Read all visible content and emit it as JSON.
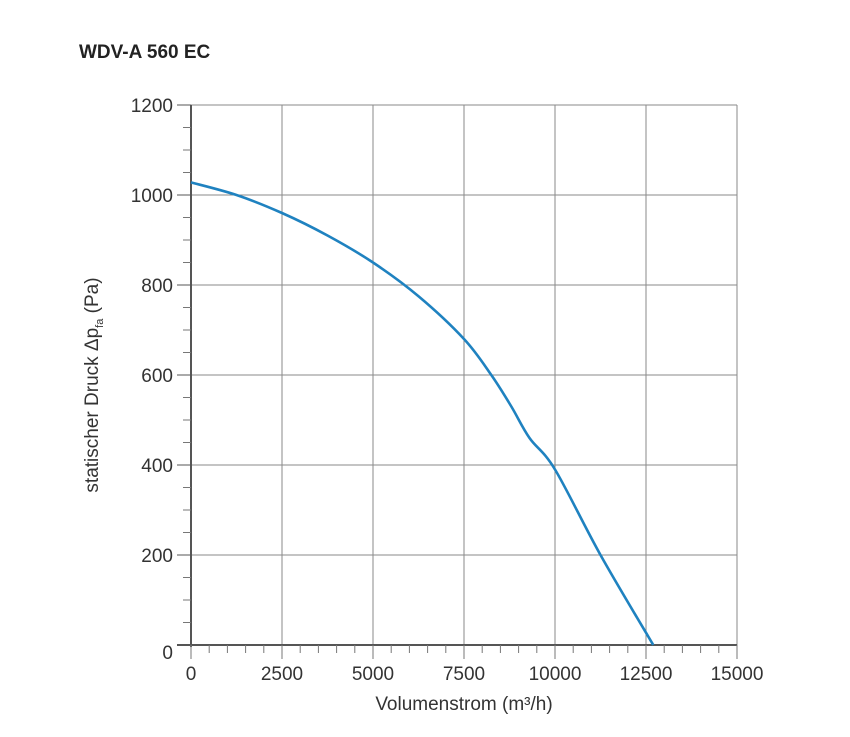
{
  "chart_data": {
    "type": "line",
    "title": "WDV-A 560 EC",
    "xlabel": "Volumenstrom (m³/h)",
    "ylabel": "statischer Druck Δp",
    "ylabel_sub": "fa",
    "ylabel_unit": " (Pa)",
    "xlim": [
      0,
      15000
    ],
    "ylim": [
      0,
      1200
    ],
    "xticks": [
      0,
      2500,
      5000,
      7500,
      10000,
      12500,
      15000
    ],
    "yticks": [
      0,
      200,
      400,
      600,
      800,
      1000,
      1200
    ],
    "grid": true,
    "series": [
      {
        "name": "WDV-A 560 EC",
        "color": "#1f82c0",
        "x": [
          0,
          1250,
          2500,
          3750,
          5000,
          6250,
          7500,
          8250,
          8800,
          9300,
          10000,
          11250,
          12700
        ],
        "y": [
          1028,
          1000,
          960,
          910,
          850,
          775,
          680,
          600,
          530,
          460,
          390,
          200,
          0
        ]
      }
    ]
  }
}
